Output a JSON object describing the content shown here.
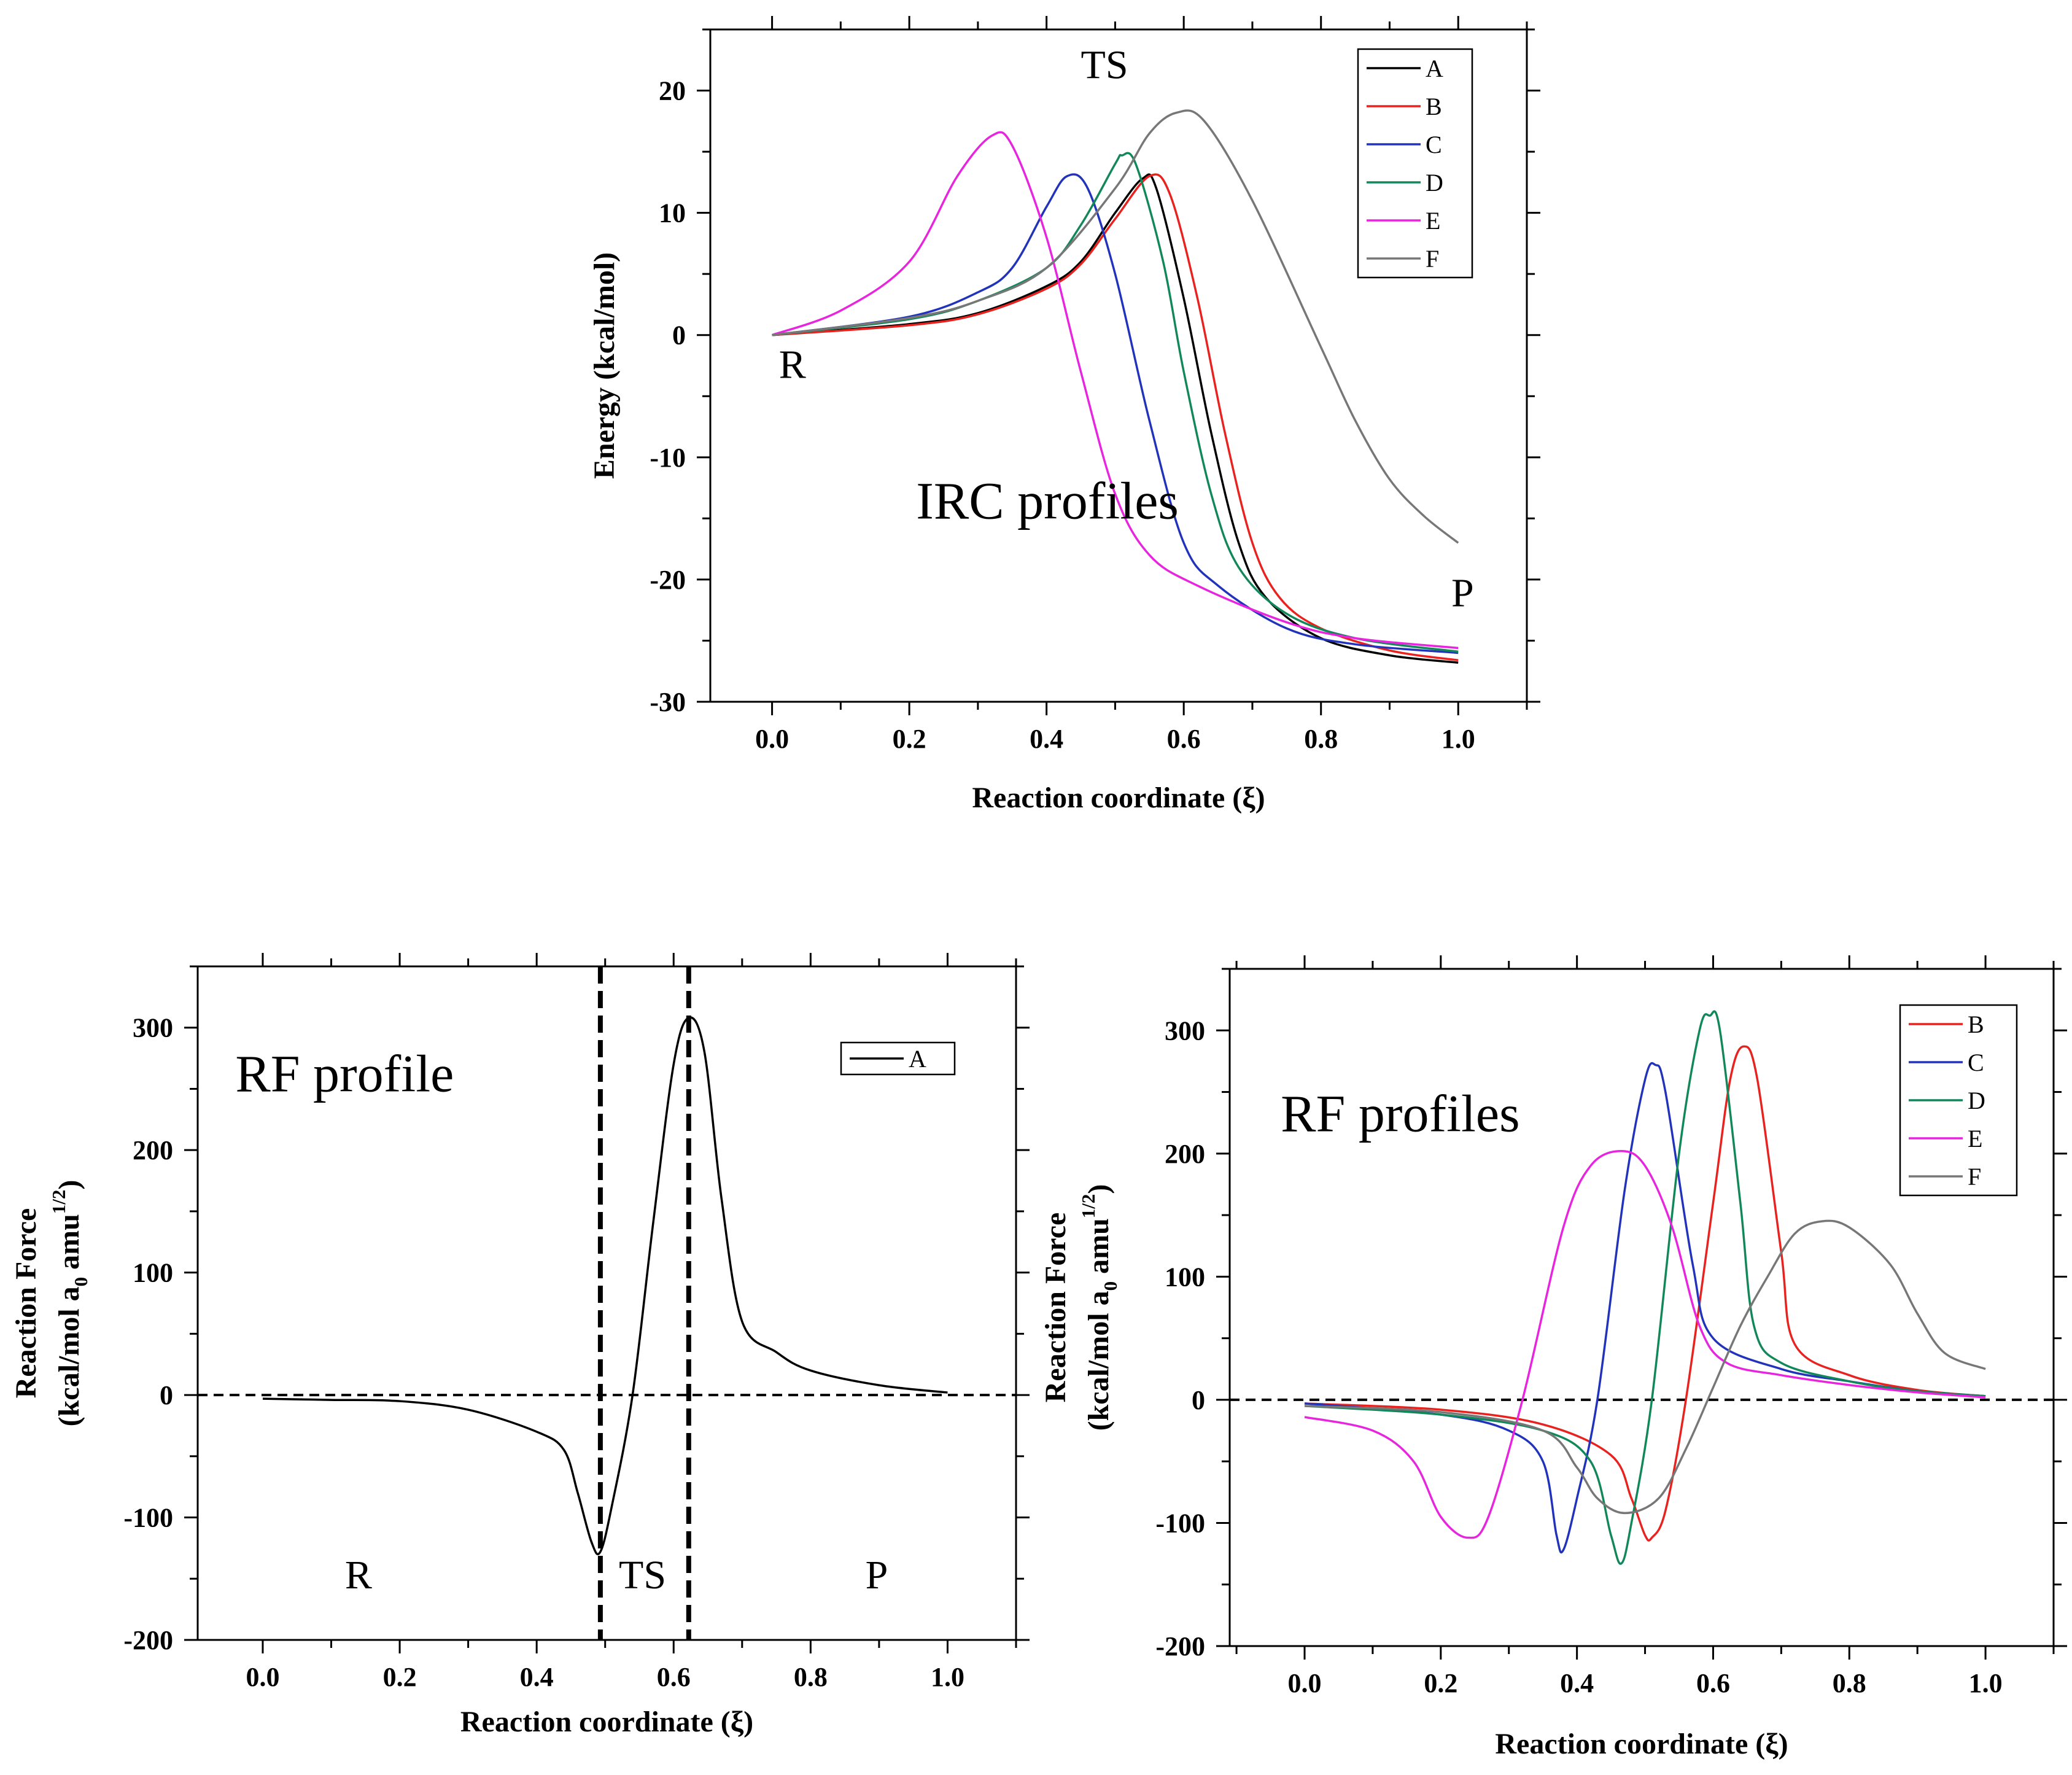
{
  "chart_data": [
    {
      "id": "irc",
      "type": "line",
      "title": "",
      "xlabel": "Reaction coordinate (ξ)",
      "ylabel": "Energy (kcal/mol)",
      "xlim": [
        -0.09,
        1.1
      ],
      "ylim": [
        -30,
        25
      ],
      "xticks": [
        "0.0",
        "0.2",
        "0.4",
        "0.6",
        "0.8",
        "1.0"
      ],
      "yticks": [
        "-30",
        "-20",
        "-10",
        "0",
        "10",
        "20"
      ],
      "legend_position": "top-right",
      "annotations": [
        {
          "text": "TS",
          "x": 0.45,
          "y": 21.0,
          "size": "medium"
        },
        {
          "text": "R",
          "x": 0.01,
          "y": -3.5,
          "size": "medium"
        },
        {
          "text": "P",
          "x": 0.99,
          "y": -22.2,
          "size": "medium"
        },
        {
          "text": "IRC profiles",
          "x": 0.21,
          "y": -15.0,
          "size": "large"
        }
      ],
      "series": [
        {
          "name": "A",
          "color": "#000000",
          "points": [
            [
              0,
              0
            ],
            [
              0.2,
              0.9
            ],
            [
              0.3,
              1.8
            ],
            [
              0.4,
              4.0
            ],
            [
              0.45,
              6.0
            ],
            [
              0.5,
              10.0
            ],
            [
              0.54,
              12.8
            ],
            [
              0.56,
              12.0
            ],
            [
              0.6,
              3.0
            ],
            [
              0.64,
              -8.0
            ],
            [
              0.68,
              -17.0
            ],
            [
              0.72,
              -21.5
            ],
            [
              0.8,
              -24.8
            ],
            [
              0.9,
              -26.2
            ],
            [
              1.0,
              -26.8
            ]
          ]
        },
        {
          "name": "B",
          "color": "#e8231f",
          "points": [
            [
              0,
              0
            ],
            [
              0.2,
              0.8
            ],
            [
              0.3,
              1.7
            ],
            [
              0.4,
              3.8
            ],
            [
              0.45,
              5.8
            ],
            [
              0.5,
              9.5
            ],
            [
              0.55,
              13.0
            ],
            [
              0.58,
              11.5
            ],
            [
              0.62,
              3.0
            ],
            [
              0.66,
              -8.0
            ],
            [
              0.7,
              -17.0
            ],
            [
              0.74,
              -21.5
            ],
            [
              0.8,
              -24.0
            ],
            [
              0.9,
              -25.8
            ],
            [
              1.0,
              -26.6
            ]
          ]
        },
        {
          "name": "C",
          "color": "#2233bb",
          "points": [
            [
              0,
              0
            ],
            [
              0.2,
              1.5
            ],
            [
              0.3,
              3.5
            ],
            [
              0.35,
              5.5
            ],
            [
              0.4,
              10.5
            ],
            [
              0.43,
              13.0
            ],
            [
              0.46,
              12.0
            ],
            [
              0.5,
              5.0
            ],
            [
              0.55,
              -7.0
            ],
            [
              0.6,
              -17.0
            ],
            [
              0.65,
              -20.5
            ],
            [
              0.75,
              -24.0
            ],
            [
              0.85,
              -25.3
            ],
            [
              1.0,
              -26.0
            ]
          ]
        },
        {
          "name": "D",
          "color": "#12885a",
          "points": [
            [
              0,
              0
            ],
            [
              0.2,
              1.3
            ],
            [
              0.3,
              2.8
            ],
            [
              0.4,
              5.5
            ],
            [
              0.45,
              9.0
            ],
            [
              0.5,
              14.0
            ],
            [
              0.51,
              14.7
            ],
            [
              0.53,
              14.0
            ],
            [
              0.57,
              6.0
            ],
            [
              0.6,
              -3.0
            ],
            [
              0.64,
              -13.0
            ],
            [
              0.68,
              -19.0
            ],
            [
              0.75,
              -22.8
            ],
            [
              0.85,
              -24.8
            ],
            [
              1.0,
              -25.9
            ]
          ]
        },
        {
          "name": "E",
          "color": "#e825de",
          "points": [
            [
              0,
              0
            ],
            [
              0.1,
              2.0
            ],
            [
              0.2,
              6.0
            ],
            [
              0.27,
              13.0
            ],
            [
              0.32,
              16.3
            ],
            [
              0.35,
              15.5
            ],
            [
              0.4,
              8.0
            ],
            [
              0.45,
              -3.0
            ],
            [
              0.5,
              -13.0
            ],
            [
              0.55,
              -18.0
            ],
            [
              0.62,
              -20.5
            ],
            [
              0.75,
              -23.5
            ],
            [
              0.85,
              -24.8
            ],
            [
              1.0,
              -25.6
            ]
          ]
        },
        {
          "name": "F",
          "color": "#777777",
          "points": [
            [
              0,
              0
            ],
            [
              0.2,
              1.4
            ],
            [
              0.3,
              2.8
            ],
            [
              0.4,
              5.5
            ],
            [
              0.5,
              12.0
            ],
            [
              0.55,
              16.5
            ],
            [
              0.59,
              18.2
            ],
            [
              0.63,
              17.5
            ],
            [
              0.7,
              11.0
            ],
            [
              0.8,
              -1.0
            ],
            [
              0.85,
              -7.0
            ],
            [
              0.9,
              -11.8
            ],
            [
              0.95,
              -14.8
            ],
            [
              1.0,
              -17.0
            ]
          ]
        }
      ]
    },
    {
      "id": "rf-a",
      "type": "line",
      "title": "",
      "xlabel": "Reaction coordinate (ξ)",
      "ylabel_line1": "Reaction Force",
      "ylabel_line2": "(kcal/mol a",
      "ylabel_sub": "0",
      "ylabel_mid": " amu",
      "ylabel_sup": "1/2",
      "ylabel_end": ")",
      "xlim": [
        -0.095,
        1.1
      ],
      "ylim": [
        -200,
        350
      ],
      "xticks": [
        "0.0",
        "0.2",
        "0.4",
        "0.6",
        "0.8",
        "1.0"
      ],
      "yticks": [
        "-200",
        "-100",
        "0",
        "100",
        "200",
        "300"
      ],
      "legend_position": "top-right",
      "reference_lines": {
        "horizontal_y": 0,
        "vertical_x": [
          0.493,
          0.622
        ]
      },
      "annotations": [
        {
          "text": "RF profile",
          "x": -0.04,
          "y": 248,
          "size": "large"
        },
        {
          "text": "R",
          "x": 0.12,
          "y": -158,
          "size": "medium"
        },
        {
          "text": "TS",
          "x": 0.52,
          "y": -158,
          "size": "medium"
        },
        {
          "text": "P",
          "x": 0.88,
          "y": -158,
          "size": "medium"
        }
      ],
      "series": [
        {
          "name": "A",
          "color": "#000000",
          "points": [
            [
              0,
              -3
            ],
            [
              0.1,
              -4
            ],
            [
              0.2,
              -5
            ],
            [
              0.3,
              -12
            ],
            [
              0.4,
              -30
            ],
            [
              0.44,
              -45
            ],
            [
              0.46,
              -80
            ],
            [
              0.48,
              -120
            ],
            [
              0.493,
              -128
            ],
            [
              0.51,
              -90
            ],
            [
              0.54,
              0
            ],
            [
              0.57,
              140
            ],
            [
              0.6,
              270
            ],
            [
              0.622,
              308
            ],
            [
              0.645,
              280
            ],
            [
              0.67,
              160
            ],
            [
              0.7,
              60
            ],
            [
              0.75,
              35
            ],
            [
              0.8,
              20
            ],
            [
              0.9,
              8
            ],
            [
              1.0,
              2
            ]
          ]
        }
      ]
    },
    {
      "id": "rf-bf",
      "type": "line",
      "title": "",
      "xlabel": "Reaction coordinate (ξ)",
      "ylabel_line1": "Reaction Force",
      "ylabel_line2": "(kcal/mol a",
      "ylabel_sub": "0",
      "ylabel_mid": " amu",
      "ylabel_sup": "1/2",
      "ylabel_end": ")",
      "xlim": [
        -0.11,
        1.1
      ],
      "ylim": [
        -200,
        350
      ],
      "xticks": [
        "0.0",
        "0.2",
        "0.4",
        "0.6",
        "0.8",
        "1.0"
      ],
      "yticks": [
        "-200",
        "-100",
        "0",
        "100",
        "200",
        "300"
      ],
      "legend_position": "top-right",
      "reference_lines": {
        "horizontal_y": 0
      },
      "annotations": [
        {
          "text": "RF profiles",
          "x": -0.035,
          "y": 218,
          "size": "large"
        }
      ],
      "series": [
        {
          "name": "B",
          "color": "#e8231f",
          "points": [
            [
              0,
              -3
            ],
            [
              0.2,
              -8
            ],
            [
              0.35,
              -20
            ],
            [
              0.45,
              -45
            ],
            [
              0.48,
              -80
            ],
            [
              0.5,
              -110
            ],
            [
              0.51,
              -112
            ],
            [
              0.53,
              -90
            ],
            [
              0.56,
              0
            ],
            [
              0.6,
              160
            ],
            [
              0.625,
              260
            ],
            [
              0.645,
              287
            ],
            [
              0.665,
              260
            ],
            [
              0.7,
              120
            ],
            [
              0.72,
              45
            ],
            [
              0.8,
              20
            ],
            [
              0.9,
              8
            ],
            [
              1.0,
              3
            ]
          ]
        },
        {
          "name": "C",
          "color": "#2233bb",
          "points": [
            [
              0,
              -3
            ],
            [
              0.2,
              -12
            ],
            [
              0.3,
              -25
            ],
            [
              0.35,
              -50
            ],
            [
              0.37,
              -110
            ],
            [
              0.38,
              -122
            ],
            [
              0.4,
              -80
            ],
            [
              0.43,
              0
            ],
            [
              0.47,
              170
            ],
            [
              0.5,
              260
            ],
            [
              0.515,
              272
            ],
            [
              0.53,
              250
            ],
            [
              0.57,
              110
            ],
            [
              0.6,
              50
            ],
            [
              0.7,
              25
            ],
            [
              0.8,
              15
            ],
            [
              0.9,
              7
            ],
            [
              1.0,
              3
            ]
          ]
        },
        {
          "name": "D",
          "color": "#12885a",
          "points": [
            [
              0,
              -5
            ],
            [
              0.2,
              -12
            ],
            [
              0.35,
              -25
            ],
            [
              0.42,
              -50
            ],
            [
              0.45,
              -110
            ],
            [
              0.465,
              -133
            ],
            [
              0.48,
              -100
            ],
            [
              0.51,
              0
            ],
            [
              0.55,
              200
            ],
            [
              0.58,
              300
            ],
            [
              0.595,
              312
            ],
            [
              0.61,
              300
            ],
            [
              0.64,
              160
            ],
            [
              0.66,
              60
            ],
            [
              0.7,
              30
            ],
            [
              0.8,
              15
            ],
            [
              0.9,
              7
            ],
            [
              1.0,
              3
            ]
          ]
        },
        {
          "name": "E",
          "color": "#e825de",
          "points": [
            [
              0,
              -14
            ],
            [
              0.1,
              -25
            ],
            [
              0.16,
              -50
            ],
            [
              0.2,
              -95
            ],
            [
              0.24,
              -112
            ],
            [
              0.27,
              -95
            ],
            [
              0.32,
              0
            ],
            [
              0.38,
              140
            ],
            [
              0.42,
              190
            ],
            [
              0.465,
              202
            ],
            [
              0.5,
              190
            ],
            [
              0.54,
              140
            ],
            [
              0.58,
              60
            ],
            [
              0.62,
              30
            ],
            [
              0.7,
              20
            ],
            [
              0.8,
              12
            ],
            [
              0.9,
              6
            ],
            [
              1.0,
              2
            ]
          ]
        },
        {
          "name": "F",
          "color": "#777777",
          "points": [
            [
              0,
              -5
            ],
            [
              0.2,
              -10
            ],
            [
              0.35,
              -25
            ],
            [
              0.4,
              -55
            ],
            [
              0.43,
              -80
            ],
            [
              0.47,
              -92
            ],
            [
              0.52,
              -80
            ],
            [
              0.56,
              -40
            ],
            [
              0.6,
              10
            ],
            [
              0.64,
              60
            ],
            [
              0.68,
              100
            ],
            [
              0.72,
              135
            ],
            [
              0.76,
              145
            ],
            [
              0.8,
              140
            ],
            [
              0.86,
              110
            ],
            [
              0.9,
              70
            ],
            [
              0.94,
              38
            ],
            [
              1.0,
              25
            ]
          ]
        }
      ]
    }
  ]
}
